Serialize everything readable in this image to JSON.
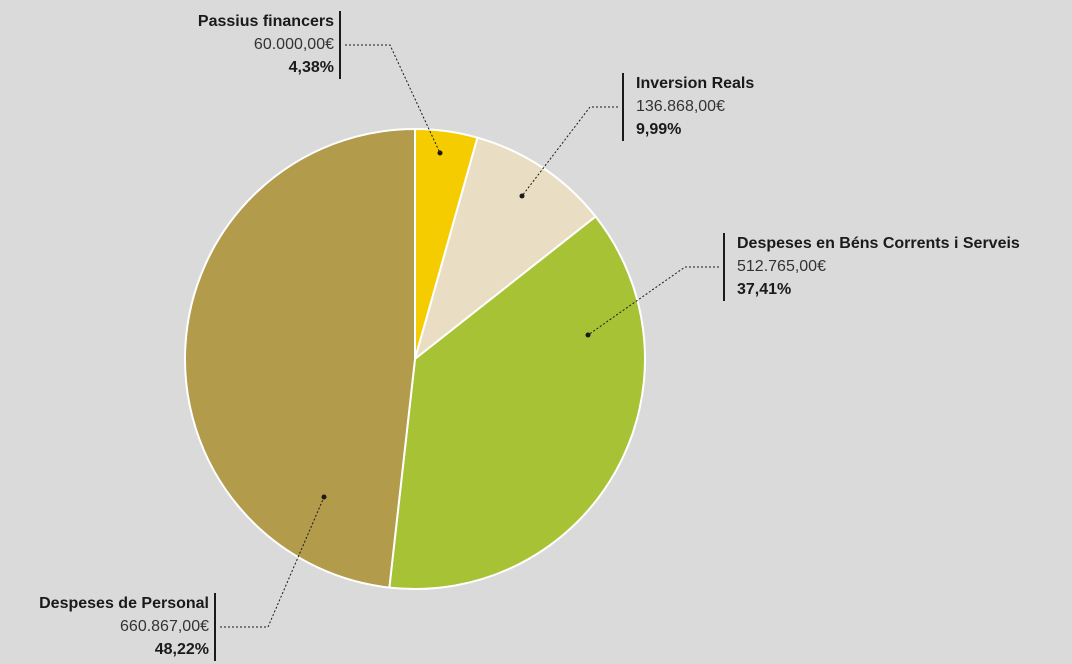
{
  "chart_data": {
    "type": "pie",
    "categories": [
      "Passius financers",
      "Inversion Reals",
      "Despeses en Béns Corrents i Serveis",
      "Despeses de Personal"
    ],
    "values": [
      4.38,
      9.99,
      37.41,
      48.22
    ],
    "value_labels": [
      "4,38%",
      "9,99%",
      "37,41%",
      "48,22%"
    ],
    "amounts": [
      60000,
      136868,
      512765,
      660867
    ],
    "amount_labels": [
      "60.000,00€",
      "136.868,00€",
      "512.765,00€",
      "660.867,00€"
    ],
    "colors": [
      "#f5cc00",
      "#e9dec3",
      "#a7c234",
      "#b39b4c"
    ]
  }
}
